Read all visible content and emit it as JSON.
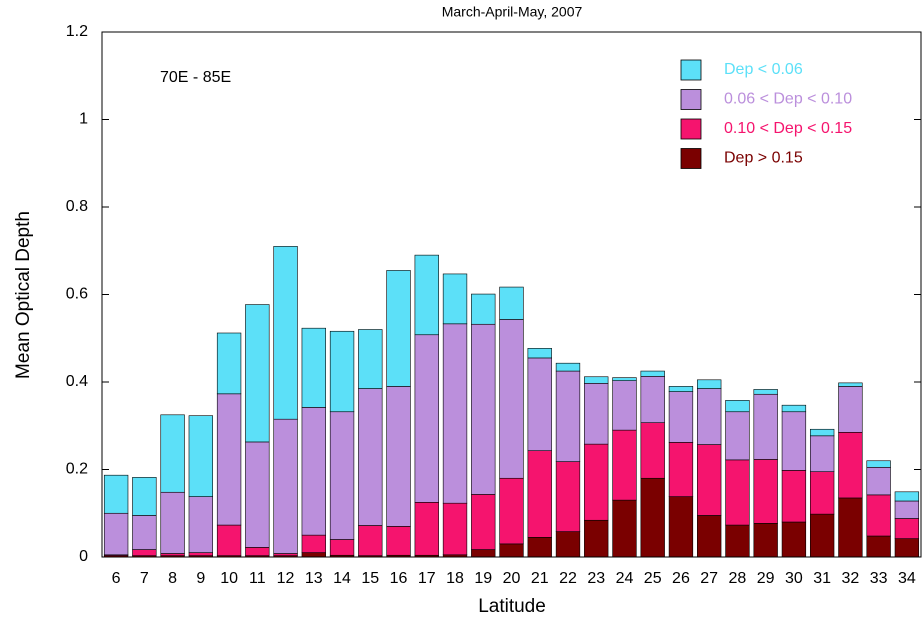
{
  "chart_data": {
    "type": "stacked_bar",
    "title": "March-April-May, 2007",
    "annotation": "70E - 85E",
    "xlabel": "Latitude",
    "ylabel": "Mean Optical Depth",
    "categories": [
      6,
      7,
      8,
      9,
      10,
      11,
      12,
      13,
      14,
      15,
      16,
      17,
      18,
      19,
      20,
      21,
      22,
      23,
      24,
      25,
      26,
      27,
      28,
      29,
      30,
      31,
      32,
      33,
      34
    ],
    "series": [
      {
        "name": "Dep < 0.06",
        "color": "#5ce0f8",
        "values": [
          0.087,
          0.087,
          0.177,
          0.185,
          0.139,
          0.314,
          0.395,
          0.181,
          0.184,
          0.135,
          0.265,
          0.182,
          0.114,
          0.069,
          0.074,
          0.022,
          0.018,
          0.015,
          0.007,
          0.012,
          0.012,
          0.02,
          0.026,
          0.011,
          0.015,
          0.015,
          0.008,
          0.015,
          0.021
        ]
      },
      {
        "name": "0.06 < Dep < 0.10",
        "color": "#bb8fdc",
        "values": [
          0.095,
          0.078,
          0.14,
          0.128,
          0.3,
          0.241,
          0.307,
          0.292,
          0.292,
          0.313,
          0.32,
          0.383,
          0.41,
          0.389,
          0.363,
          0.212,
          0.207,
          0.139,
          0.113,
          0.106,
          0.116,
          0.128,
          0.11,
          0.149,
          0.134,
          0.082,
          0.105,
          0.063,
          0.04
        ]
      },
      {
        "name": "0.10 < Dep < 0.15",
        "color": "#f5146e",
        "values": [
          0.002,
          0.014,
          0.005,
          0.007,
          0.07,
          0.019,
          0.005,
          0.04,
          0.036,
          0.069,
          0.066,
          0.121,
          0.118,
          0.126,
          0.15,
          0.198,
          0.16,
          0.174,
          0.16,
          0.127,
          0.124,
          0.162,
          0.149,
          0.146,
          0.118,
          0.097,
          0.15,
          0.094,
          0.046
        ]
      },
      {
        "name": "Dep > 0.15",
        "color": "#7a0000",
        "values": [
          0.003,
          0.003,
          0.003,
          0.003,
          0.003,
          0.003,
          0.003,
          0.01,
          0.004,
          0.003,
          0.004,
          0.004,
          0.005,
          0.017,
          0.03,
          0.045,
          0.058,
          0.084,
          0.13,
          0.18,
          0.138,
          0.095,
          0.073,
          0.077,
          0.08,
          0.098,
          0.135,
          0.048,
          0.042
        ]
      }
    ],
    "ylim": [
      0,
      1.2
    ],
    "yticks": [
      0,
      0.2,
      0.4,
      0.6,
      0.8,
      1,
      1.2
    ],
    "grid": false,
    "legend": "top-right"
  }
}
